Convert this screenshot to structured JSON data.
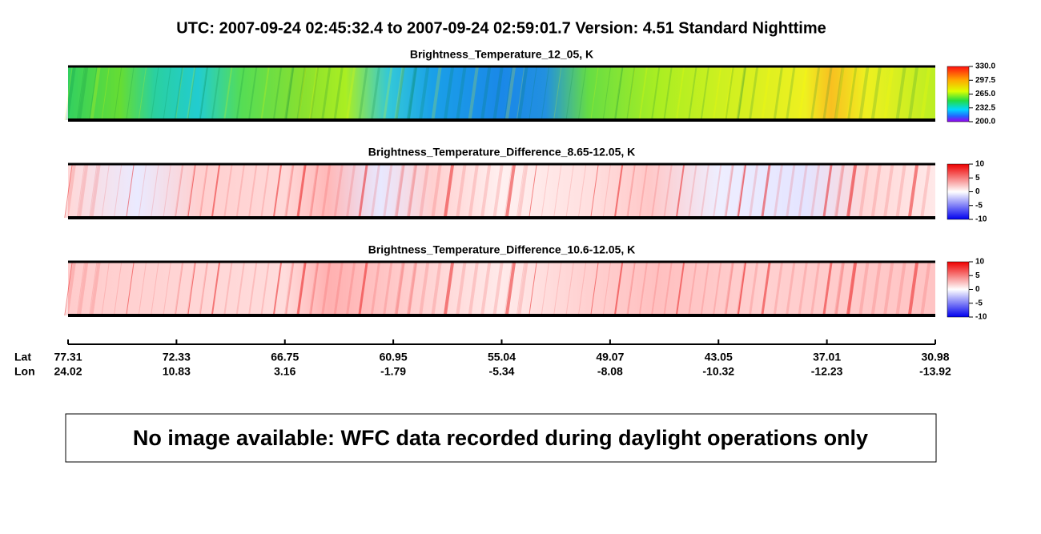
{
  "header": {
    "title": "UTC:  2007-09-24   02:45:32.4  to  2007-09-24   02:59:01.7    Version: 4.51  Standard Nighttime"
  },
  "panels": [
    {
      "title": "Brightness_Temperature_12_05, K",
      "colorbar": [
        "330.0",
        "297.5",
        "265.0",
        "232.5",
        "200.0"
      ]
    },
    {
      "title": "Brightness_Temperature_Difference_8.65-12.05, K",
      "colorbar": [
        "10",
        "5",
        "0",
        "-5",
        "-10"
      ]
    },
    {
      "title": "Brightness_Temperature_Difference_10.6-12.05, K",
      "colorbar": [
        "10",
        "5",
        "0",
        "-5",
        "-10"
      ]
    }
  ],
  "axis": {
    "lat_label": "Lat",
    "lon_label": "Lon",
    "lat": [
      "77.31",
      "72.33",
      "66.75",
      "60.95",
      "55.04",
      "49.07",
      "43.05",
      "37.01",
      "30.98"
    ],
    "lon": [
      "24.02",
      "10.83",
      "3.16",
      "-1.79",
      "-5.34",
      "-8.08",
      "-10.32",
      "-12.23",
      "-13.92"
    ]
  },
  "notice": "No image available: WFC data recorded during daylight operations only"
}
